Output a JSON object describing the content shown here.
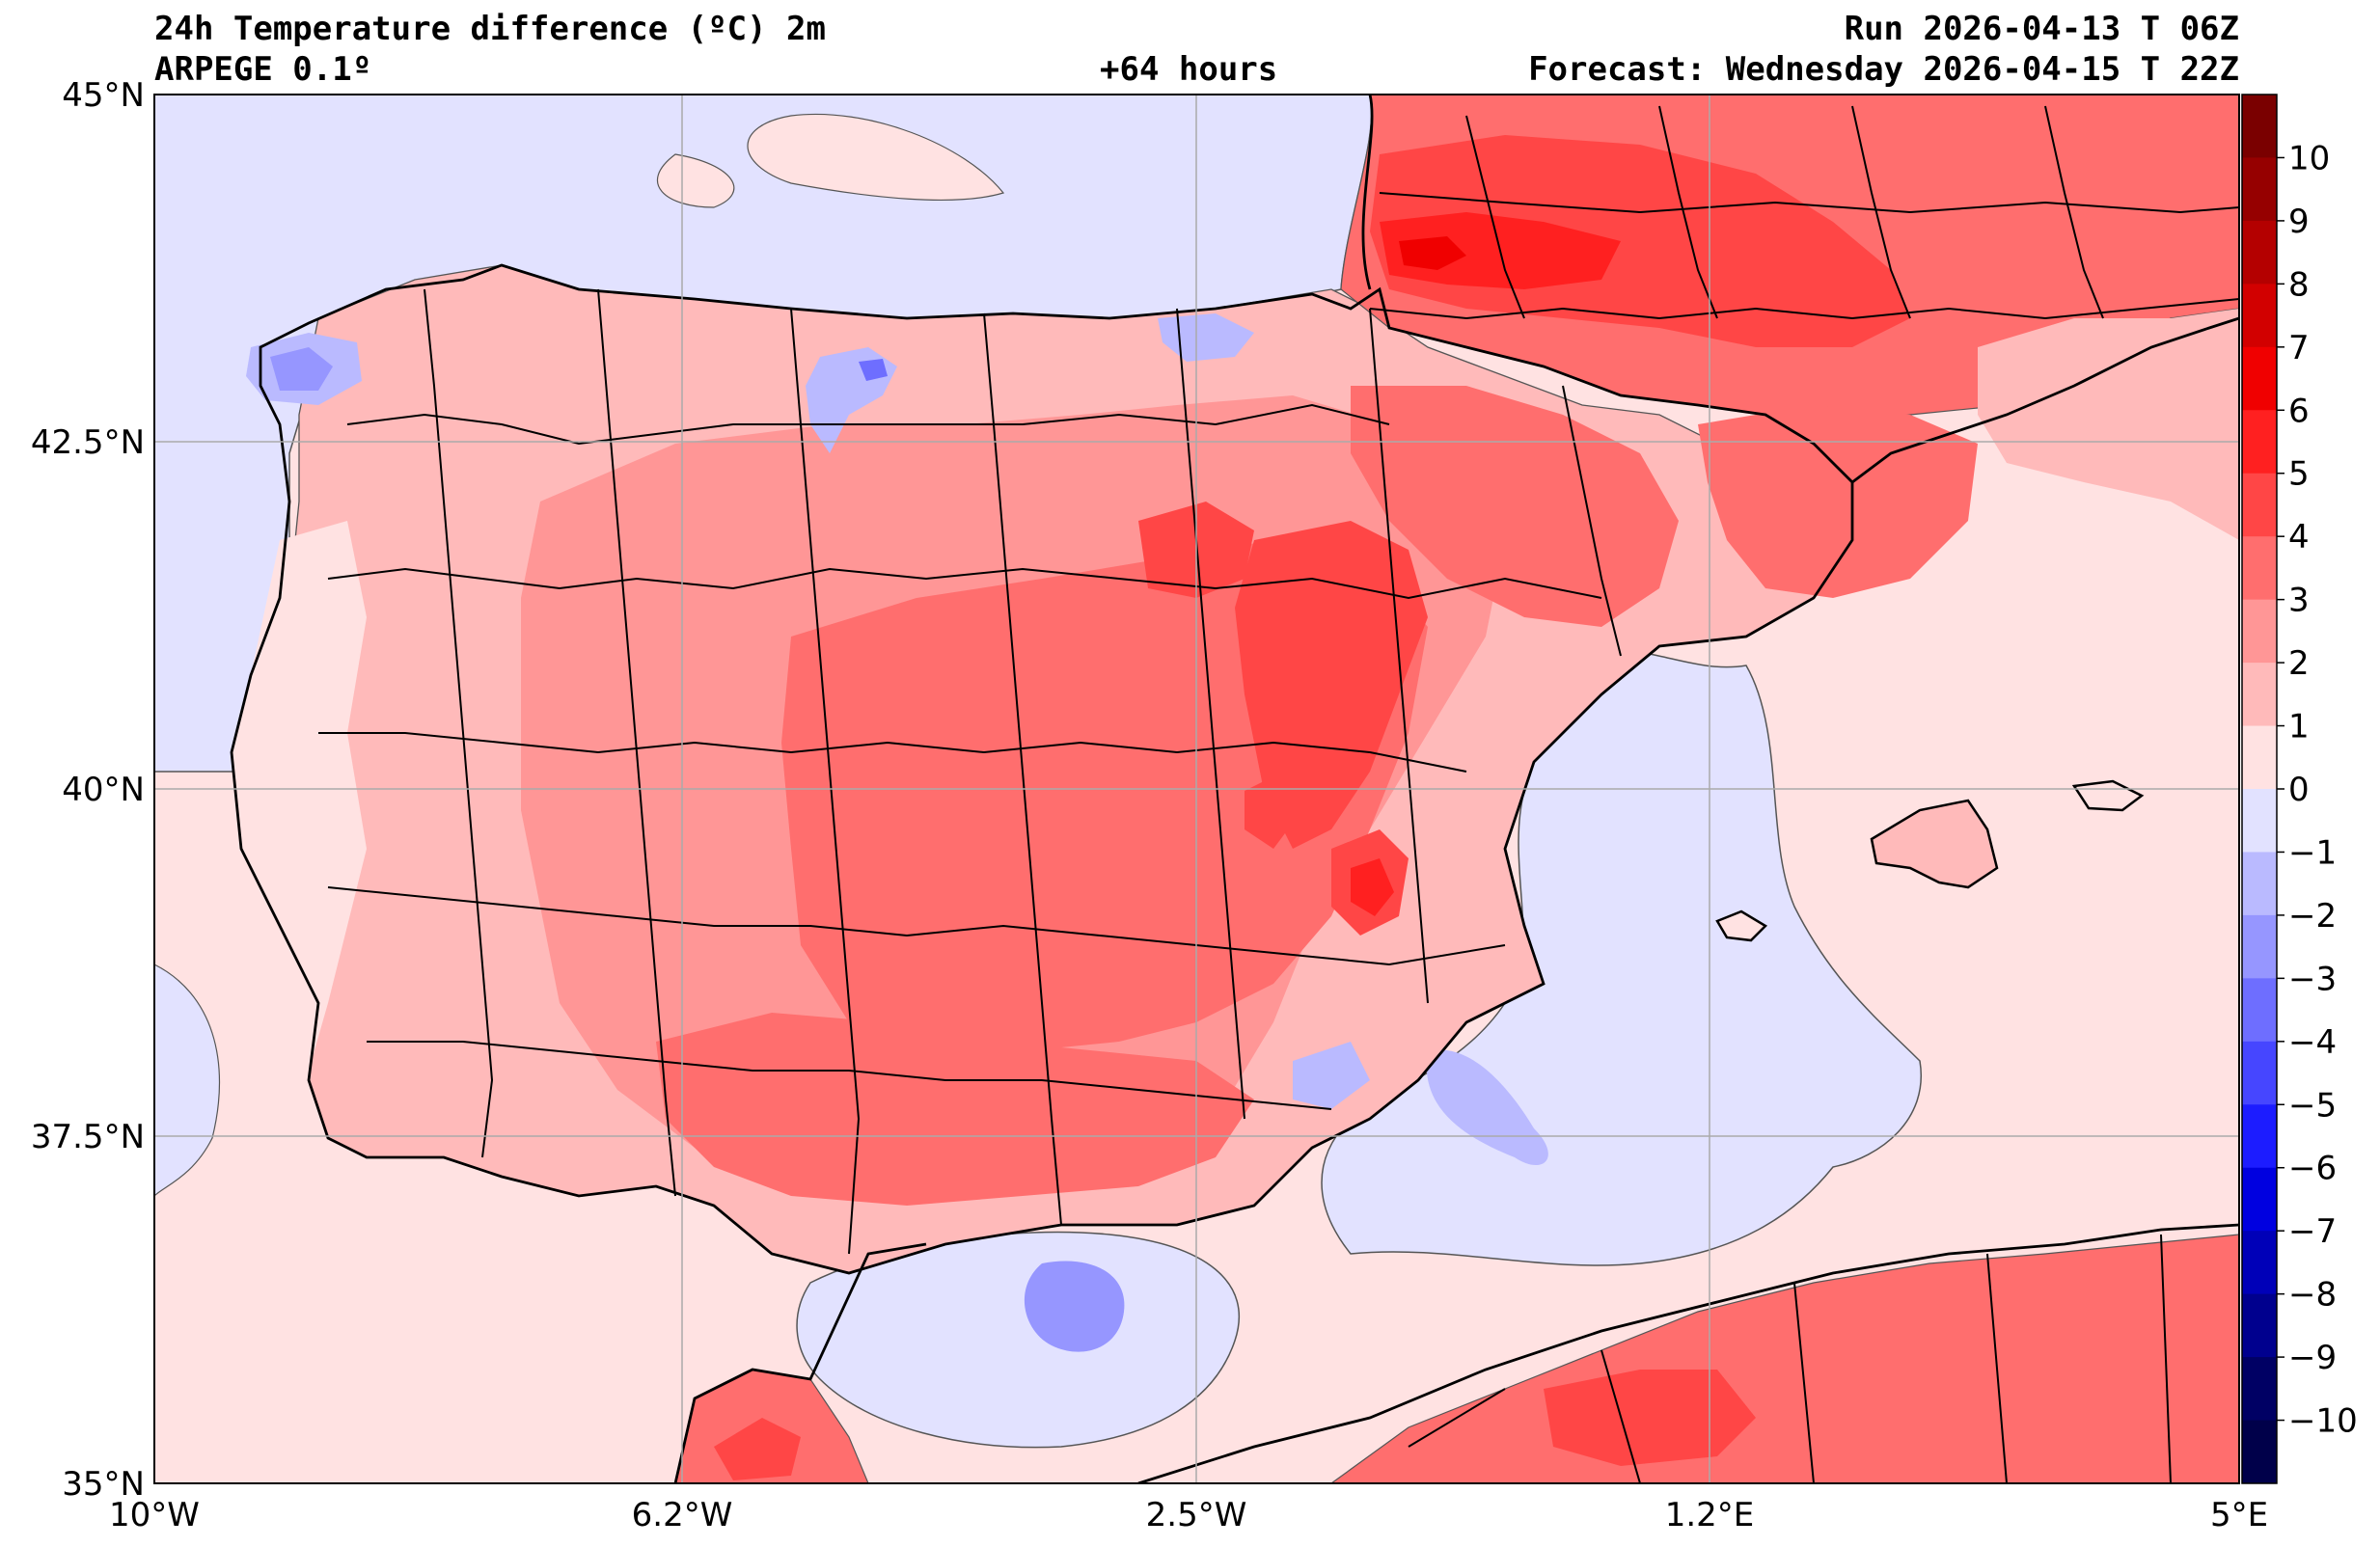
{
  "header": {
    "title": "24h Temperature difference (ºC) 2m",
    "model": "ARPEGE 0.1º",
    "lead": "+64 hours",
    "run": "Run 2026-04-13 T 06Z",
    "forecast": "Forecast: Wednesday 2026-04-15 T 22Z"
  },
  "axes": {
    "lat_labels": [
      "45°N",
      "42.5°N",
      "40°N",
      "37.5°N",
      "35°N"
    ],
    "lon_labels": [
      "10°W",
      "6.2°W",
      "2.5°W",
      "1.2°E",
      "5°E"
    ],
    "lat_range": [
      35,
      45
    ],
    "lon_range": [
      -10,
      5
    ]
  },
  "colorbar": {
    "labels": [
      "10",
      "9",
      "8",
      "7",
      "6",
      "5",
      "4",
      "3",
      "2",
      "1",
      "0",
      "−1",
      "−2",
      "−3",
      "−4",
      "−5",
      "−6",
      "−7",
      "−8",
      "−9",
      "−10"
    ],
    "colors": [
      "#7a0000",
      "#960000",
      "#b40000",
      "#d20000",
      "#f00000",
      "#ff2020",
      "#ff4646",
      "#ff6e6e",
      "#ff9696",
      "#ffbaba",
      "#ffe2e2",
      "#e2e2ff",
      "#babaff",
      "#9696ff",
      "#6e6eff",
      "#4646ff",
      "#1c1cff",
      "#0000e0",
      "#0000b8",
      "#00008e",
      "#000064",
      "#00004a"
    ]
  }
}
